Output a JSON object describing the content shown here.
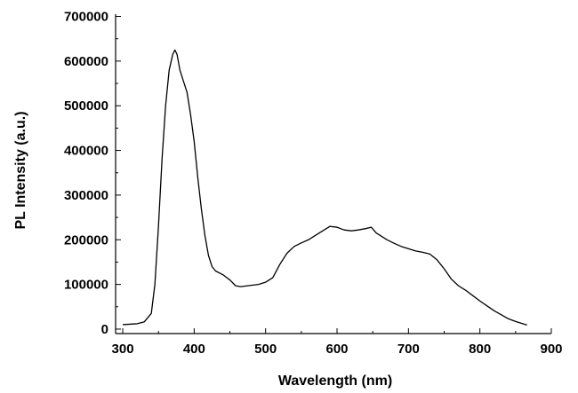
{
  "chart_data": {
    "type": "line",
    "xlabel": "Wavelength (nm)",
    "ylabel": "PL Intensity (a.u.)",
    "xlim": [
      290,
      900
    ],
    "ylim": [
      -10000,
      705000
    ],
    "grid": false,
    "legend": "none",
    "line_color": "#000000",
    "x_ticks": [
      300,
      400,
      500,
      600,
      700,
      800,
      900
    ],
    "y_ticks": [
      0,
      100000,
      200000,
      300000,
      400000,
      500000,
      600000,
      700000
    ],
    "x_tick_labels": [
      "300",
      "400",
      "500",
      "600",
      "700",
      "800",
      "900"
    ],
    "y_tick_labels": [
      "0",
      "100000",
      "200000",
      "300000",
      "400000",
      "500000",
      "600000",
      "700000"
    ],
    "series": [
      {
        "x": [
          300,
          310,
          320,
          330,
          340,
          345,
          350,
          355,
          360,
          365,
          370,
          373,
          376,
          380,
          385,
          390,
          395,
          400,
          405,
          410,
          415,
          420,
          425,
          430,
          440,
          450,
          458,
          465,
          470,
          480,
          490,
          500,
          510,
          520,
          530,
          540,
          550,
          560,
          570,
          580,
          590,
          600,
          610,
          620,
          630,
          640,
          648,
          655,
          660,
          670,
          680,
          690,
          700,
          710,
          720,
          730,
          740,
          750,
          760,
          770,
          780,
          790,
          800,
          810,
          820,
          830,
          840,
          850,
          860,
          866
        ],
        "y": [
          10000,
          11000,
          12000,
          16000,
          35000,
          100000,
          230000,
          380000,
          500000,
          580000,
          615000,
          625000,
          615000,
          580000,
          555000,
          530000,
          480000,
          420000,
          340000,
          270000,
          210000,
          165000,
          140000,
          130000,
          122000,
          110000,
          97000,
          95000,
          96000,
          98000,
          100000,
          105000,
          115000,
          145000,
          170000,
          185000,
          193000,
          200000,
          210000,
          220000,
          230000,
          228000,
          222000,
          220000,
          222000,
          225000,
          228000,
          215000,
          210000,
          200000,
          192000,
          185000,
          180000,
          175000,
          172000,
          168000,
          155000,
          135000,
          112000,
          97000,
          87000,
          75000,
          63000,
          52000,
          41000,
          32000,
          23000,
          17000,
          12000,
          9000
        ]
      }
    ]
  }
}
